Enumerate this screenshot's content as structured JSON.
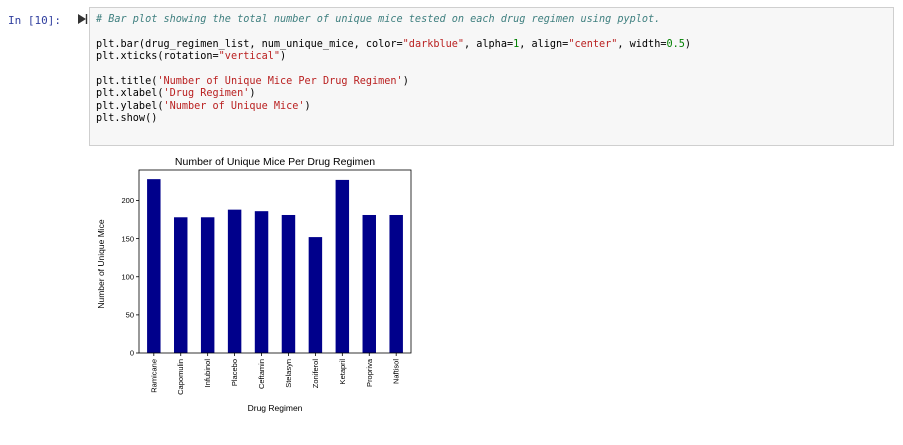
{
  "cell": {
    "prompt": "In [10]:",
    "code": {
      "comment": "# Bar plot showing the total number of unique mice tested on each drug regimen using pyplot.",
      "l1a": "plt.bar(drug_regimen_list, num_unique_mice, color=",
      "l1b": "\"darkblue\"",
      "l1c": ", alpha=",
      "l1d": "1",
      "l1e": ", align=",
      "l1f": "\"center\"",
      "l1g": ", width=",
      "l1h": "0.5",
      "l1i": ")",
      "l2a": "plt.xticks(rotation=",
      "l2b": "\"vertical\"",
      "l2c": ")",
      "l3a": "plt.title(",
      "l3b": "'Number of Unique Mice Per Drug Regimen'",
      "l3c": ")",
      "l4a": "plt.xlabel(",
      "l4b": "'Drug Regimen'",
      "l4c": ")",
      "l5a": "plt.ylabel(",
      "l5b": "'Number of Unique Mice'",
      "l5c": ")",
      "l6": "plt.show()"
    }
  },
  "colors": {
    "bar": "#00008b",
    "prompt": "#303f9f",
    "comment": "#408080",
    "string": "#ba2121",
    "number": "#008000"
  },
  "icons": {
    "run": "run-triangle-icon"
  },
  "chart_data": {
    "type": "bar",
    "title": "Number of Unique Mice Per Drug Regimen",
    "xlabel": "Drug Regimen",
    "ylabel": "Number of Unique Mice",
    "categories": [
      "Ramicane",
      "Capomulin",
      "Infubinol",
      "Placebo",
      "Ceftamin",
      "Stelasyn",
      "Zoniferol",
      "Ketapril",
      "Propriva",
      "Naftisol"
    ],
    "values": [
      228,
      178,
      178,
      188,
      186,
      181,
      152,
      227,
      181,
      181
    ],
    "yticks": [
      "0",
      "50",
      "100",
      "150",
      "200"
    ],
    "ylim": [
      0,
      240
    ],
    "grid": false,
    "legend": false
  }
}
